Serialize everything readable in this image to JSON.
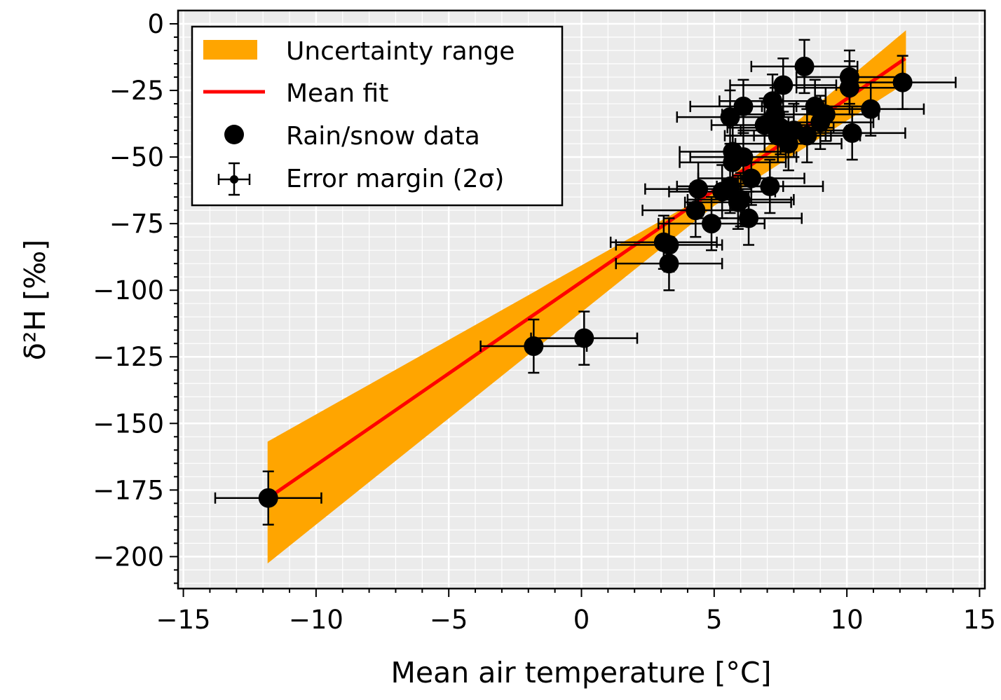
{
  "chart_data": {
    "type": "scatter",
    "xlabel": "Mean air temperature [°C]",
    "ylabel": "δ²H [‰]",
    "xlim": [
      -15.2,
      15.2
    ],
    "ylim": [
      -212,
      5
    ],
    "xticks": [
      -15,
      -10,
      -5,
      0,
      5,
      10,
      15
    ],
    "xtick_labels": [
      "−15",
      "−10",
      "−5",
      "0",
      "5",
      "10",
      "15"
    ],
    "yticks": [
      0,
      -25,
      -50,
      -75,
      -100,
      -125,
      -150,
      -175,
      -200
    ],
    "ytick_labels": [
      "0",
      "−25",
      "−50",
      "−75",
      "−100",
      "−125",
      "−150",
      "−175",
      "−200"
    ],
    "grid": true,
    "legend_position": "top-left",
    "legend": [
      {
        "label": "Uncertainty range",
        "kind": "band",
        "color": "#ffa500"
      },
      {
        "label": "Mean fit",
        "kind": "line",
        "color": "#ff0000"
      },
      {
        "label": "Rain/snow data",
        "kind": "marker",
        "color": "#000000"
      },
      {
        "label": "Error margin (2σ)",
        "kind": "errorbar",
        "color": "#000000"
      }
    ],
    "series": [
      {
        "name": "Mean fit",
        "kind": "line",
        "color": "#ff0000",
        "x": [
          -11.8,
          12.2
        ],
        "y": [
          -178,
          -13
        ]
      },
      {
        "name": "Uncertainty range",
        "kind": "band",
        "color": "#ffa500",
        "x": [
          -11.8,
          5.0,
          12.2
        ],
        "upper": [
          -157,
          -63,
          -3
        ],
        "lower": [
          -202,
          -68,
          -22
        ]
      },
      {
        "name": "Rain/snow data",
        "kind": "scatter",
        "color": "#000000",
        "x_error": 2.0,
        "y_error": 10,
        "points": [
          [
            -11.8,
            -178
          ],
          [
            -1.8,
            -121
          ],
          [
            0.1,
            -118
          ],
          [
            3.1,
            -82
          ],
          [
            3.3,
            -83
          ],
          [
            3.3,
            -90
          ],
          [
            4.3,
            -70
          ],
          [
            4.4,
            -62
          ],
          [
            4.9,
            -75
          ],
          [
            5.3,
            -63
          ],
          [
            5.6,
            -61
          ],
          [
            5.6,
            -35
          ],
          [
            5.7,
            -48
          ],
          [
            5.7,
            -52
          ],
          [
            5.9,
            -67
          ],
          [
            6.0,
            -66
          ],
          [
            6.1,
            -31
          ],
          [
            6.1,
            -50
          ],
          [
            6.3,
            -73
          ],
          [
            6.4,
            -58
          ],
          [
            6.9,
            -38
          ],
          [
            7.1,
            -61
          ],
          [
            7.2,
            -29
          ],
          [
            7.3,
            -34
          ],
          [
            7.4,
            -42
          ],
          [
            7.5,
            -39
          ],
          [
            7.6,
            -23
          ],
          [
            7.8,
            -45
          ],
          [
            8.0,
            -40
          ],
          [
            8.4,
            -16
          ],
          [
            8.5,
            -42
          ],
          [
            8.8,
            -31
          ],
          [
            9.0,
            -37
          ],
          [
            9.2,
            -34
          ],
          [
            10.1,
            -20
          ],
          [
            10.1,
            -24
          ],
          [
            10.2,
            -41
          ],
          [
            10.9,
            -32
          ],
          [
            12.1,
            -22
          ]
        ]
      }
    ]
  }
}
